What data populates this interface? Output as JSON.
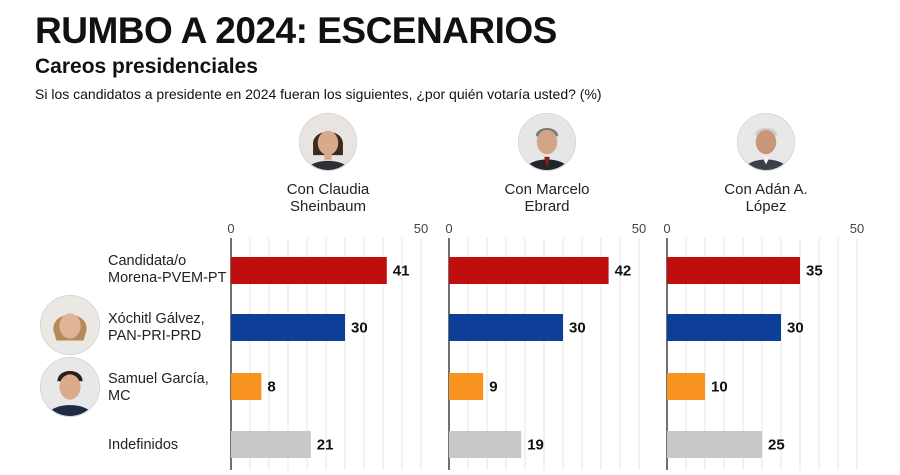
{
  "header": {
    "title": "RUMBO A 2024: ESCENARIOS",
    "subtitle": "Careos presidenciales",
    "question": "Si los candidatos a presidente en 2024 fueran los siguientes, ¿por quién votaría usted? (%)"
  },
  "icons": {
    "scenarios": [
      "claudia-sheinbaum-portrait-icon",
      "marcelo-ebrard-portrait-icon",
      "adan-augusto-lopez-portrait-icon"
    ],
    "categories": [
      "xochitl-galvez-portrait-icon",
      "samuel-garcia-portrait-icon"
    ]
  },
  "chart_data": {
    "type": "bar",
    "orientation": "horizontal",
    "layout": "small-multiples",
    "unit": "%",
    "xlim": [
      0,
      50
    ],
    "xticks": [
      0,
      50
    ],
    "grid": true,
    "categories": [
      "Candidata/o\nMorena-PVEM-PT",
      "Xóchitl Gálvez,\nPAN-PRI-PRD",
      "Samuel García,\nMC",
      "Indefinidos"
    ],
    "category_colors": [
      "#c00d0d",
      "#0d3f99",
      "#f7931e",
      "#c8c8c8"
    ],
    "series": [
      {
        "name": "Con Claudia\nSheinbaum",
        "values": [
          41,
          30,
          8,
          21
        ]
      },
      {
        "name": "Con Marcelo\nEbrard",
        "values": [
          42,
          30,
          9,
          19
        ]
      },
      {
        "name": "Con Adán A.\nLópez",
        "values": [
          35,
          30,
          10,
          25
        ]
      }
    ]
  }
}
